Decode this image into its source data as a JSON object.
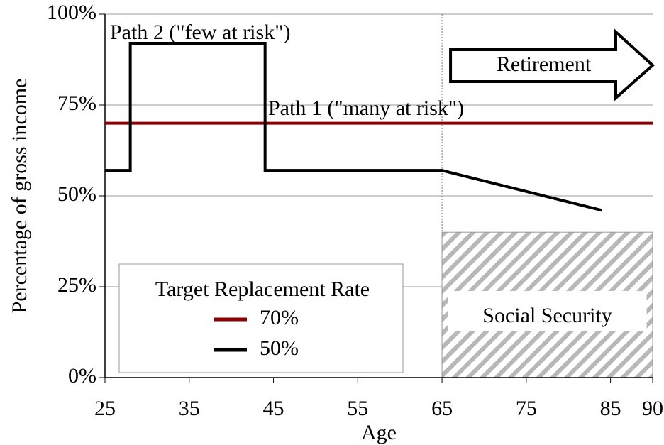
{
  "chart_data": {
    "type": "line",
    "xlabel": "Age",
    "ylabel": "Percentage of gross income",
    "xlim": [
      25,
      90
    ],
    "xticks": [
      25,
      35,
      45,
      55,
      65,
      75,
      85,
      90
    ],
    "ylim": [
      0,
      100
    ],
    "yticks": [
      {
        "value": 0,
        "label": "0%"
      },
      {
        "value": 25,
        "label": "25%"
      },
      {
        "value": 50,
        "label": "50%"
      },
      {
        "value": 75,
        "label": "75%"
      },
      {
        "value": 100,
        "label": "100%"
      }
    ],
    "grid": true,
    "legend_title": "Target Replacement Rate",
    "series": [
      {
        "name": "70%",
        "color": "#8b0000",
        "x": [
          25,
          90
        ],
        "values": [
          70,
          70
        ]
      },
      {
        "name": "50%",
        "color": "#000000",
        "x": [
          25,
          28,
          28,
          44,
          44,
          65,
          84
        ],
        "values": [
          57,
          57,
          92,
          92,
          57,
          57,
          46
        ]
      }
    ],
    "annotations": [
      "Path 2 (\"few at risk\")",
      "Path 1 (\"many at risk\")",
      "Retirement"
    ],
    "region": {
      "label": "Social Security",
      "x": [
        65,
        90
      ],
      "y": [
        0,
        40
      ]
    }
  }
}
